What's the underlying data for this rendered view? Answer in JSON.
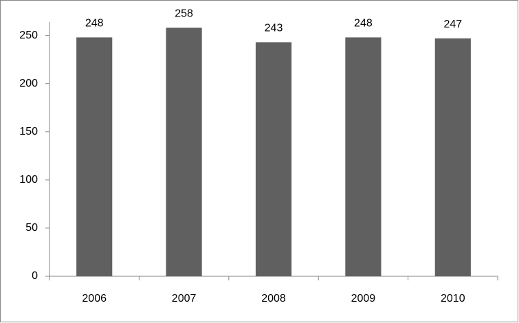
{
  "chart_data": {
    "type": "bar",
    "categories": [
      "2006",
      "2007",
      "2008",
      "2009",
      "2010"
    ],
    "values": [
      248,
      258,
      243,
      248,
      247
    ],
    "color": "#606060",
    "ylim": [
      0,
      264
    ],
    "yticks": [
      0,
      50,
      100,
      150,
      200,
      250
    ],
    "grid": false
  }
}
